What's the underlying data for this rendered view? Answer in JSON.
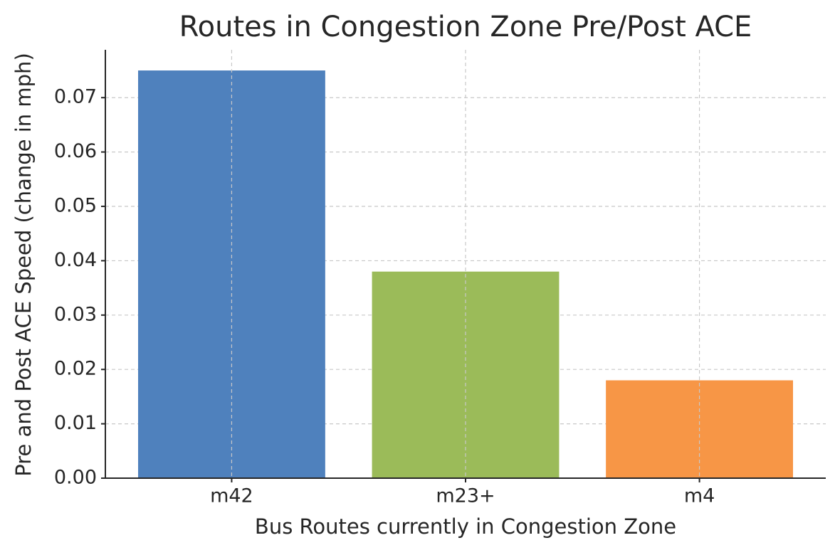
{
  "chart_data": {
    "type": "bar",
    "title": "Routes in Congestion Zone Pre/Post ACE",
    "x_label": "Bus Routes currently in Congestion Zone",
    "y_label": "Pre and Post ACE Speed (change in mph)",
    "categories": [
      "m42",
      "m23+",
      "m4"
    ],
    "values": [
      0.075,
      0.038,
      0.018
    ],
    "colors": [
      "#4f81bd",
      "#9bbb59",
      "#f79646"
    ],
    "ylim": [
      0,
      0.0788
    ],
    "yticks": [
      {
        "value": 0,
        "label": "0.00"
      },
      {
        "value": 0.01,
        "label": "0.01"
      },
      {
        "value": 0.02,
        "label": "0.02"
      },
      {
        "value": 0.03,
        "label": "0.03"
      },
      {
        "value": 0.04,
        "label": "0.04"
      },
      {
        "value": 0.05,
        "label": "0.05"
      },
      {
        "value": 0.06,
        "label": "0.06"
      },
      {
        "value": 0.07,
        "label": "0.07"
      }
    ],
    "grid": true
  }
}
